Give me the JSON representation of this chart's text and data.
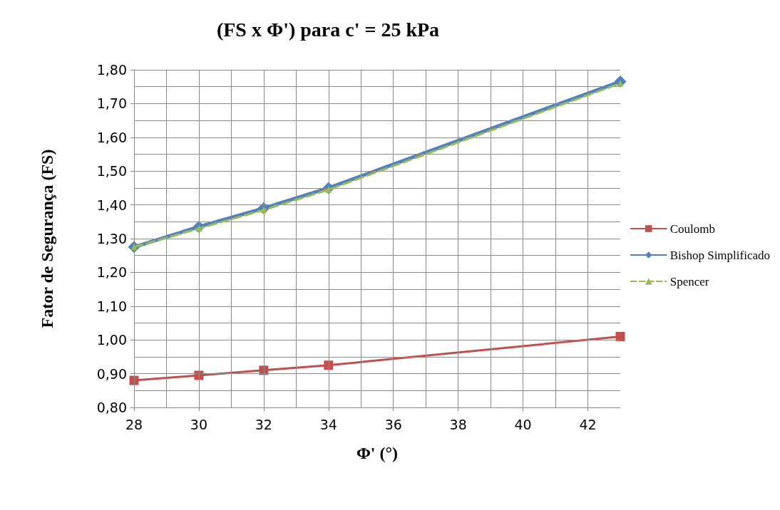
{
  "chart_data": {
    "type": "line",
    "title": "(FS x Φ') para c' = 25 kPa",
    "xlabel": "Φ' (°)",
    "ylabel": "Fator de Segurança (FS)",
    "x": [
      28,
      30,
      32,
      34,
      43
    ],
    "series": [
      {
        "name": "Coulomb",
        "color": "#c0504d",
        "marker": "square",
        "line_style": "solid",
        "values": [
          0.88,
          0.895,
          0.91,
          0.925,
          1.01
        ]
      },
      {
        "name": "Bishop Simplificado",
        "color": "#4f81bd",
        "marker": "diamond",
        "line_style": "solid",
        "values": [
          1.275,
          1.335,
          1.39,
          1.45,
          1.765
        ]
      },
      {
        "name": "Spencer",
        "color": "#9bbb59",
        "marker": "triangle",
        "line_style": "dashed",
        "values": [
          1.275,
          1.33,
          1.385,
          1.445,
          1.76
        ]
      }
    ],
    "xlim": [
      28,
      43
    ],
    "xticks": [
      28,
      {
        "value": 29,
        "label": null
      },
      30,
      {
        "value": 31,
        "label": null
      },
      32,
      {
        "value": 33,
        "label": null
      },
      34,
      {
        "value": 35,
        "label": null
      },
      36,
      {
        "value": 37,
        "label": null
      },
      38,
      {
        "value": 39,
        "label": null
      },
      40,
      {
        "value": 41,
        "label": null
      },
      42
    ],
    "ylim": [
      0.8,
      1.8
    ],
    "yticks": [
      {
        "value": 0.8,
        "label": "0,80"
      },
      {
        "value": 0.85,
        "label": null
      },
      {
        "value": 0.9,
        "label": "0,90"
      },
      {
        "value": 0.95,
        "label": null
      },
      {
        "value": 1.0,
        "label": "1,00"
      },
      {
        "value": 1.05,
        "label": null
      },
      {
        "value": 1.1,
        "label": "1,10"
      },
      {
        "value": 1.15,
        "label": null
      },
      {
        "value": 1.2,
        "label": "1,20"
      },
      {
        "value": 1.25,
        "label": null
      },
      {
        "value": 1.3,
        "label": "1,30"
      },
      {
        "value": 1.35,
        "label": null
      },
      {
        "value": 1.4,
        "label": "1,40"
      },
      {
        "value": 1.45,
        "label": null
      },
      {
        "value": 1.5,
        "label": "1,50"
      },
      {
        "value": 1.55,
        "label": null
      },
      {
        "value": 1.6,
        "label": "1,60"
      },
      {
        "value": 1.65,
        "label": null
      },
      {
        "value": 1.7,
        "label": "1,70"
      },
      {
        "value": 1.75,
        "label": null
      },
      {
        "value": 1.8,
        "label": "1,80"
      }
    ],
    "grid": true,
    "legend": "right"
  }
}
